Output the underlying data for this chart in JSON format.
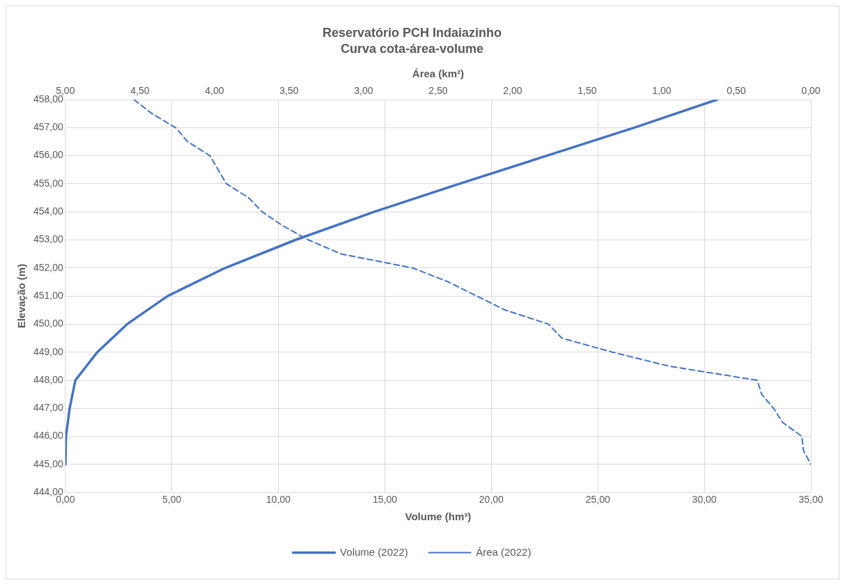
{
  "chart_data": {
    "type": "line",
    "title": "Reservatório PCH Indaiazinho",
    "subtitle": "Curva cota-área-volume",
    "xlabel": "Volume (hm³)",
    "x2label": "Área (km²)",
    "ylabel": "Elevação (m)",
    "xlim": [
      0,
      35
    ],
    "xticks": [
      {
        "value": 0,
        "label": "0,00"
      },
      {
        "value": 5,
        "label": "5,00"
      },
      {
        "value": 10,
        "label": "10,00"
      },
      {
        "value": 15,
        "label": "15,00"
      },
      {
        "value": 20,
        "label": "20,00"
      },
      {
        "value": 25,
        "label": "25,00"
      },
      {
        "value": 30,
        "label": "30,00"
      },
      {
        "value": 35,
        "label": "35,00"
      }
    ],
    "x2lim": [
      5,
      0
    ],
    "x2ticks": [
      {
        "value": 5,
        "label": "5,00"
      },
      {
        "value": 4.5,
        "label": "4,50"
      },
      {
        "value": 4,
        "label": "4,00"
      },
      {
        "value": 3.5,
        "label": "3,50"
      },
      {
        "value": 3,
        "label": "3,00"
      },
      {
        "value": 2.5,
        "label": "2,50"
      },
      {
        "value": 2,
        "label": "2,00"
      },
      {
        "value": 1.5,
        "label": "1,50"
      },
      {
        "value": 1,
        "label": "1,00"
      },
      {
        "value": 0.5,
        "label": "0,50"
      },
      {
        "value": 0,
        "label": "0,00"
      }
    ],
    "ylim": [
      444,
      458
    ],
    "yticks": [
      {
        "value": 444,
        "label": "444,00"
      },
      {
        "value": 445,
        "label": "445,00"
      },
      {
        "value": 446,
        "label": "446,00"
      },
      {
        "value": 447,
        "label": "447,00"
      },
      {
        "value": 448,
        "label": "448,00"
      },
      {
        "value": 449,
        "label": "449,00"
      },
      {
        "value": 450,
        "label": "450,00"
      },
      {
        "value": 451,
        "label": "451,00"
      },
      {
        "value": 452,
        "label": "452,00"
      },
      {
        "value": 453,
        "label": "453,00"
      },
      {
        "value": 454,
        "label": "454,00"
      },
      {
        "value": 455,
        "label": "455,00"
      },
      {
        "value": 456,
        "label": "456,00"
      },
      {
        "value": 457,
        "label": "457,00"
      },
      {
        "value": 458,
        "label": "458,00"
      }
    ],
    "grid": true,
    "legend": "bottom",
    "marker": "none",
    "series": [
      {
        "name": "Volume (2022)",
        "color": "#4472c4",
        "line_style": "solid",
        "x": [
          0,
          0.03,
          0.2,
          0.47,
          1.5,
          2.9,
          4.8,
          7.5,
          10.8,
          14.5,
          18.5,
          22.6,
          26.7,
          30.6
        ],
        "values": [
          445,
          446,
          447,
          448,
          449,
          450,
          451,
          452,
          453,
          454,
          455,
          456,
          457,
          458
        ]
      },
      {
        "name": "Área (2022)",
        "color": "#4472c4",
        "line_style": "dashed",
        "axis": "x2",
        "x": [
          4.54,
          4.42,
          4.26,
          4.18,
          4.03,
          3.92,
          3.77,
          3.68,
          3.54,
          3.37,
          3.15,
          2.67,
          2.43,
          2.24,
          2.05,
          1.76,
          1.67,
          1.33,
          0.95,
          0.36,
          0.33,
          0.25,
          0.19,
          0.06,
          0.05,
          0
        ],
        "values": [
          458,
          457.5,
          457,
          456.5,
          456,
          455,
          454.5,
          454,
          453.5,
          453,
          452.5,
          452,
          451.5,
          451,
          450.5,
          450,
          449.5,
          449,
          448.5,
          448,
          447.5,
          447,
          446.5,
          446,
          445.5,
          445
        ]
      }
    ]
  }
}
